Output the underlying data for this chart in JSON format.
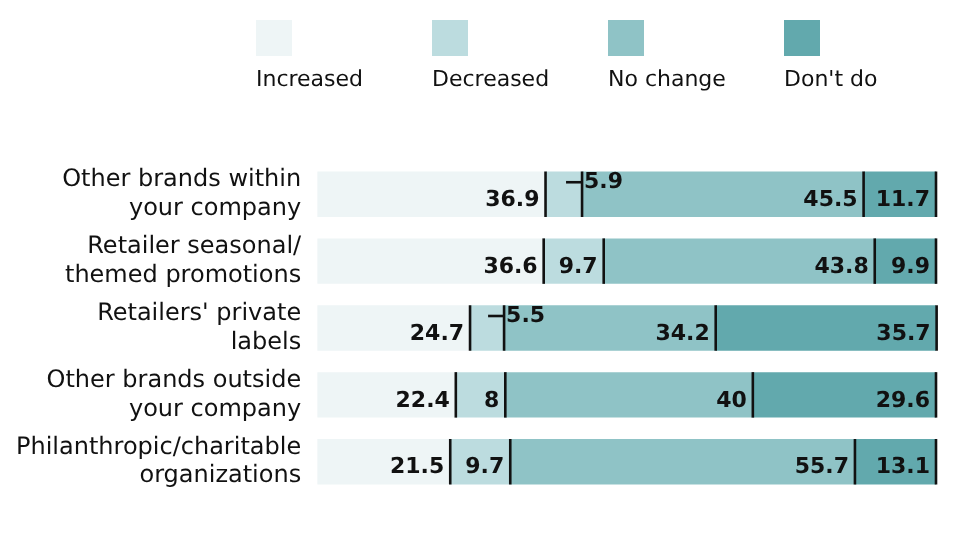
{
  "chart_data": {
    "type": "bar",
    "orientation": "horizontal",
    "stacked": true,
    "categories": [
      "Other brands within your company",
      "Retailer seasonal/ themed promotions",
      "Retailers' private labels",
      "Other brands outside your company",
      "Philanthropic/charitable organizations"
    ],
    "series": [
      {
        "name": "Increased",
        "color": "#eef5f6",
        "values": [
          36.9,
          36.6,
          24.7,
          22.4,
          21.5
        ]
      },
      {
        "name": "Decreased",
        "color": "#bcdcdf",
        "values": [
          5.9,
          9.7,
          5.5,
          8,
          9.7
        ]
      },
      {
        "name": "No change",
        "color": "#8fc3c6",
        "values": [
          45.5,
          43.8,
          34.2,
          40,
          55.7
        ]
      },
      {
        "name": "Don't do",
        "color": "#62a9ad",
        "values": [
          11.7,
          9.9,
          35.7,
          29.6,
          13.1
        ]
      }
    ],
    "xlim": [
      0,
      100
    ],
    "data_labels": true,
    "legend": "top",
    "grid": false,
    "tick_labels": "y"
  }
}
